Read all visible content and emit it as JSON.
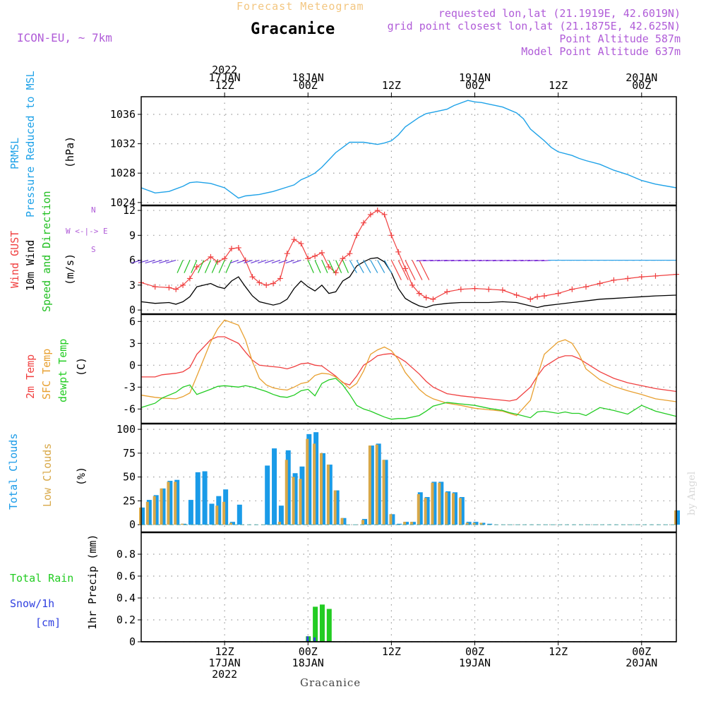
{
  "header": {
    "super_title": "Forecast Meteogram",
    "location": "Gracanice",
    "model": "ICON-EU, ~ 7km",
    "requested": "requested lon,lat (21.1919E, 42.6019N)",
    "grid_point": "grid point closest lon,lat (21.1875E, 42.625N)",
    "point_altitude": "Point Altitude 587m",
    "model_altitude": "Model Point Altitude 637m",
    "footer_location": "Gracanice",
    "watermark": "by Angel"
  },
  "colors": {
    "pressure": "#1fa2e8",
    "gust": "#f04040",
    "wind": "#000000",
    "wind_dir": "#22c022",
    "temp": "#f04040",
    "sfc": "#e8a030",
    "dewpt": "#22cc22",
    "total_clouds": "#1a9be8",
    "low_clouds": "#d8a848",
    "rain": "#22cc22",
    "snow": "#3040e0",
    "label_purple": "#b05cd8"
  },
  "time_axis": {
    "top_labels": [
      {
        "lines": [
          "2022",
          "17JAN",
          "12Z"
        ],
        "hour": 12
      },
      {
        "lines": [
          "18JAN",
          "00Z"
        ],
        "hour": 24
      },
      {
        "lines": [
          "12Z"
        ],
        "hour": 36
      },
      {
        "lines": [
          "19JAN",
          "00Z"
        ],
        "hour": 48
      },
      {
        "lines": [
          "12Z"
        ],
        "hour": 60
      },
      {
        "lines": [
          "20JAN",
          "00Z"
        ],
        "hour": 72
      }
    ],
    "bottom_labels": [
      {
        "lines": [
          "12Z",
          "17JAN",
          "2022"
        ],
        "hour": 12
      },
      {
        "lines": [
          "00Z",
          "18JAN"
        ],
        "hour": 24
      },
      {
        "lines": [
          "12Z"
        ],
        "hour": 36
      },
      {
        "lines": [
          "00Z",
          "19JAN"
        ],
        "hour": 48
      },
      {
        "lines": [
          "12Z"
        ],
        "hour": 60
      },
      {
        "lines": [
          "00Z",
          "20JAN"
        ],
        "hour": 72
      }
    ],
    "hour_start": 0,
    "hour_end": 77
  },
  "panel_labels": {
    "pressure": {
      "name": "PRMSL",
      "desc": "Pressure Reduced to MSL",
      "unit": "(hPa)"
    },
    "wind": {
      "gust": "Wind GUST",
      "wind": "10m Wind",
      "dir": "Speed and Direction",
      "unit": "(m/s)",
      "compass": [
        "N",
        "W <-|-> E",
        "S"
      ]
    },
    "temp": {
      "t2m": "2m Temp",
      "sfc": "SFC Temp",
      "dew": "dewpt Temp",
      "unit": "(C)"
    },
    "clouds": {
      "total": "Total Clouds",
      "low": "Low Clouds",
      "unit": "(%)"
    },
    "precip": {
      "rain": "Total  Rain",
      "snow": "Snow/1h",
      "snow_unit": "[cm]",
      "desc": "1hr Precip (mm)"
    }
  },
  "chart_data": [
    {
      "type": "line",
      "title": "PRMSL Pressure Reduced to MSL",
      "ylabel": "hPa",
      "ylim": [
        1023.6,
        1038.4
      ],
      "yticks": [
        1024,
        1028,
        1032,
        1036
      ],
      "x": [
        0,
        2,
        4,
        6,
        7,
        8,
        10,
        12,
        14,
        15,
        17,
        19,
        21,
        22,
        23,
        24,
        25,
        26,
        28,
        29,
        30,
        32,
        34,
        35,
        36,
        37,
        38,
        40,
        41,
        42,
        44,
        45,
        47,
        48,
        49,
        50,
        52,
        54,
        55,
        56,
        58,
        59,
        60,
        62,
        63,
        64,
        66,
        68,
        70,
        72,
        74,
        77
      ],
      "series": [
        {
          "name": "PRMSL",
          "values": [
            1026.0,
            1025.3,
            1025.5,
            1026.2,
            1026.7,
            1026.8,
            1026.6,
            1026.0,
            1024.6,
            1024.9,
            1025.1,
            1025.5,
            1026.1,
            1026.4,
            1027.1,
            1027.5,
            1028.0,
            1028.8,
            1030.8,
            1031.5,
            1032.2,
            1032.2,
            1031.9,
            1032.1,
            1032.4,
            1033.2,
            1034.3,
            1035.6,
            1036.1,
            1036.3,
            1036.7,
            1037.2,
            1037.9,
            1037.7,
            1037.6,
            1037.4,
            1037.0,
            1036.2,
            1035.4,
            1034.0,
            1032.4,
            1031.5,
            1030.9,
            1030.4,
            1030.0,
            1029.7,
            1029.2,
            1028.4,
            1027.8,
            1027.0,
            1026.5,
            1026.0
          ]
        }
      ]
    },
    {
      "type": "line",
      "title": "Wind GUST / 10m Wind Speed and Direction",
      "ylabel": "m/s",
      "ylim": [
        -0.5,
        12.6
      ],
      "yticks": [
        0,
        3,
        6,
        9,
        12
      ],
      "x": [
        0,
        2,
        4,
        5,
        6,
        7,
        8,
        10,
        11,
        12,
        13,
        14,
        15,
        16,
        17,
        18,
        19,
        20,
        21,
        22,
        23,
        24,
        25,
        26,
        27,
        28,
        29,
        30,
        31,
        32,
        33,
        34,
        35,
        36,
        37,
        38,
        39,
        40,
        41,
        42,
        44,
        46,
        48,
        50,
        52,
        54,
        56,
        57,
        58,
        60,
        62,
        64,
        66,
        68,
        70,
        72,
        74,
        77
      ],
      "series": [
        {
          "name": "Wind GUST",
          "values": [
            3.3,
            2.8,
            2.7,
            2.5,
            3.0,
            3.8,
            5.2,
            6.4,
            5.8,
            6.2,
            7.4,
            7.5,
            6.0,
            4.0,
            3.3,
            3.0,
            3.2,
            3.8,
            6.8,
            8.5,
            8.0,
            6.2,
            6.5,
            6.9,
            5.2,
            4.5,
            6.2,
            6.8,
            9.0,
            10.5,
            11.5,
            12.0,
            11.5,
            9.0,
            7.0,
            5.0,
            3.0,
            2.0,
            1.5,
            1.3,
            2.2,
            2.5,
            2.6,
            2.5,
            2.4,
            1.8,
            1.3,
            1.6,
            1.7,
            2.0,
            2.5,
            2.8,
            3.2,
            3.6,
            3.8,
            4.0,
            4.1,
            4.3
          ]
        },
        {
          "name": "10m Wind",
          "values": [
            1.0,
            0.8,
            0.9,
            0.7,
            1.0,
            1.6,
            2.8,
            3.2,
            2.8,
            2.6,
            3.5,
            4.0,
            2.8,
            1.7,
            1.0,
            0.8,
            0.6,
            0.8,
            1.3,
            2.6,
            3.5,
            2.8,
            2.3,
            3.0,
            2.0,
            2.2,
            3.5,
            4.0,
            5.3,
            5.8,
            6.2,
            6.3,
            5.8,
            4.5,
            2.6,
            1.4,
            0.9,
            0.5,
            0.3,
            0.6,
            0.8,
            0.9,
            0.9,
            0.9,
            1.0,
            0.9,
            0.5,
            0.3,
            0.5,
            0.7,
            0.9,
            1.1,
            1.3,
            1.4,
            1.5,
            1.6,
            1.7,
            1.8
          ]
        }
      ]
    },
    {
      "type": "line",
      "title": "2m Temp / SFC Temp / dewpt Temp",
      "ylabel": "C",
      "ylim": [
        -8,
        7
      ],
      "yticks": [
        -6,
        -3,
        0,
        3,
        6
      ],
      "x": [
        0,
        2,
        3,
        5,
        6,
        7,
        8,
        10,
        11,
        12,
        14,
        15,
        16,
        17,
        18,
        19,
        20,
        21,
        22,
        23,
        24,
        25,
        26,
        27,
        28,
        29,
        30,
        31,
        32,
        33,
        34,
        35,
        36,
        37,
        38,
        40,
        41,
        42,
        44,
        46,
        48,
        50,
        52,
        53,
        54,
        56,
        57,
        58,
        60,
        61,
        62,
        63,
        64,
        66,
        68,
        70,
        72,
        74,
        77
      ],
      "series": [
        {
          "name": "2m Temp",
          "values": [
            -1.6,
            -1.6,
            -1.3,
            -1.1,
            -0.9,
            -0.3,
            1.5,
            3.5,
            3.9,
            3.9,
            3.0,
            1.8,
            0.7,
            0.0,
            -0.1,
            -0.2,
            -0.3,
            -0.5,
            -0.2,
            0.2,
            0.3,
            0.0,
            -0.1,
            -0.8,
            -1.5,
            -2.4,
            -2.7,
            -1.5,
            0.0,
            0.6,
            1.3,
            1.5,
            1.6,
            1.1,
            0.5,
            -1.2,
            -2.2,
            -3.0,
            -3.9,
            -4.2,
            -4.4,
            -4.6,
            -4.8,
            -4.9,
            -4.7,
            -3.0,
            -1.5,
            -0.2,
            1.0,
            1.3,
            1.3,
            0.9,
            0.3,
            -0.9,
            -1.8,
            -2.4,
            -2.8,
            -3.2,
            -3.6
          ]
        },
        {
          "name": "SFC Temp",
          "values": [
            -4.1,
            -4.4,
            -4.5,
            -4.6,
            -4.3,
            -3.8,
            -1.5,
            3.2,
            5.0,
            6.2,
            5.5,
            3.5,
            0.5,
            -1.8,
            -2.7,
            -3.1,
            -3.3,
            -3.4,
            -3.0,
            -2.5,
            -2.3,
            -1.4,
            -1.1,
            -1.2,
            -1.6,
            -2.3,
            -3.2,
            -2.5,
            -0.8,
            1.5,
            2.1,
            2.5,
            2.0,
            0.8,
            -1.0,
            -3.3,
            -4.1,
            -4.6,
            -5.2,
            -5.5,
            -5.9,
            -6.1,
            -6.3,
            -6.6,
            -6.9,
            -4.8,
            -1.5,
            1.5,
            3.2,
            3.5,
            3.0,
            1.5,
            -0.5,
            -2.0,
            -2.9,
            -3.5,
            -4.0,
            -4.6,
            -5.0
          ]
        },
        {
          "name": "dewpt Temp",
          "values": [
            -5.8,
            -5.2,
            -4.5,
            -3.7,
            -3.0,
            -2.7,
            -4.0,
            -3.3,
            -2.9,
            -2.8,
            -3.0,
            -2.8,
            -3.0,
            -3.3,
            -3.6,
            -4.0,
            -4.3,
            -4.4,
            -4.1,
            -3.5,
            -3.3,
            -4.2,
            -2.5,
            -2.0,
            -1.8,
            -2.7,
            -4.0,
            -5.5,
            -6.0,
            -6.3,
            -6.7,
            -7.1,
            -7.4,
            -7.3,
            -7.3,
            -6.9,
            -6.3,
            -5.6,
            -5.1,
            -5.3,
            -5.5,
            -5.9,
            -6.2,
            -6.5,
            -6.7,
            -7.2,
            -6.4,
            -6.3,
            -6.6,
            -6.4,
            -6.6,
            -6.6,
            -6.9,
            -5.8,
            -6.2,
            -6.7,
            -5.5,
            -6.3,
            -7.0
          ]
        }
      ]
    },
    {
      "type": "bar",
      "title": "Total Clouds / Low Clouds",
      "ylabel": "%",
      "ylim": [
        -8,
        106
      ],
      "yticks": [
        0,
        25,
        50,
        75,
        100
      ],
      "x": [
        0,
        1,
        2,
        3,
        4,
        5,
        6,
        7,
        8,
        9,
        10,
        11,
        12,
        13,
        14,
        15,
        16,
        17,
        18,
        19,
        20,
        21,
        22,
        23,
        24,
        25,
        26,
        27,
        28,
        29,
        30,
        31,
        32,
        33,
        34,
        35,
        36,
        37,
        38,
        39,
        40,
        41,
        42,
        43,
        44,
        45,
        46,
        47,
        48,
        49,
        50,
        51,
        52,
        53,
        54,
        55,
        56,
        57,
        58,
        59,
        60,
        61,
        62,
        63,
        64,
        65,
        66,
        67,
        68,
        69,
        70,
        71,
        72,
        73,
        74,
        75,
        76,
        77
      ],
      "series": [
        {
          "name": "Total Clouds",
          "values": [
            18,
            26,
            31,
            38,
            46,
            47,
            1,
            26,
            55,
            56,
            22,
            30,
            37,
            3,
            21,
            0,
            0,
            0,
            62,
            80,
            20,
            78,
            54,
            61,
            95,
            97,
            75,
            63,
            36,
            7,
            0,
            0,
            6,
            83,
            85,
            68,
            11,
            1,
            3,
            3,
            34,
            29,
            45,
            45,
            35,
            34,
            29,
            3,
            3,
            2,
            1,
            0,
            0,
            0,
            0,
            0,
            0,
            0,
            0,
            0,
            0,
            0,
            0,
            0,
            0,
            0,
            0,
            0,
            0,
            0,
            0,
            0,
            0,
            0,
            0,
            0,
            0,
            15
          ]
        },
        {
          "name": "Low Clouds",
          "values": [
            18,
            24,
            30,
            38,
            45,
            45,
            1,
            0,
            0,
            0,
            0,
            20,
            24,
            2,
            0,
            0,
            0,
            0,
            0,
            0,
            3,
            68,
            50,
            48,
            90,
            85,
            75,
            63,
            36,
            7,
            0,
            0,
            5,
            83,
            84,
            68,
            11,
            0,
            3,
            3,
            32,
            28,
            44,
            44,
            34,
            33,
            28,
            2,
            2,
            2,
            0,
            0,
            0,
            0,
            0,
            0,
            0,
            0,
            0,
            0,
            0,
            0,
            0,
            0,
            0,
            0,
            0,
            0,
            0,
            0,
            0,
            0,
            0,
            0,
            0,
            0,
            0,
            15
          ]
        }
      ]
    },
    {
      "type": "bar",
      "title": "1hr Precip (mm)",
      "ylabel": "mm",
      "ylim": [
        0,
        1.0
      ],
      "yticks": [
        0,
        0.2,
        0.4,
        0.6,
        0.8
      ],
      "x": [
        24,
        25,
        26,
        27
      ],
      "series": [
        {
          "name": "Total Rain",
          "values": [
            0.05,
            0.32,
            0.34,
            0.3
          ]
        },
        {
          "name": "Snow/1h",
          "values": [
            0.05,
            0.04,
            0.0,
            0.0
          ]
        }
      ]
    }
  ]
}
